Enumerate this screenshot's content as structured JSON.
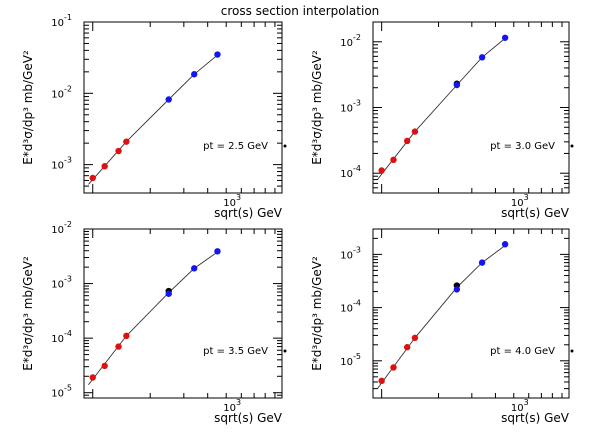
{
  "figure_title": "cross section interpolation",
  "colors": {
    "red": "#dd1111",
    "blue": "#1515ee",
    "black": "#000000",
    "axis": "#000000"
  },
  "chart_data": [
    {
      "type": "scatter",
      "title": "",
      "annotation": "pt = 2.5 GeV",
      "xlabel": "sqrt(s) GeV",
      "ylabel": "E*d³σ/dp³ mb/GeV²",
      "xscale": "log",
      "yscale": "log",
      "xlim": [
        180,
        1960
      ],
      "ylim": [
        0.0004,
        0.1
      ],
      "xtick": {
        "value": 1000,
        "mantissa": "10",
        "exponent": "3"
      },
      "yticks": [
        {
          "value": 0.001,
          "mantissa": "10",
          "exponent": "-3"
        },
        {
          "value": 0.01,
          "mantissa": "10",
          "exponent": "-2"
        },
        {
          "value": 0.1,
          "mantissa": "10",
          "exponent": "-1"
        }
      ],
      "red_points": {
        "x": [
          200,
          231,
          273,
          300
        ],
        "y": [
          0.00065,
          0.00095,
          0.00155,
          0.0021
        ]
      },
      "black_points": {
        "x": [],
        "y": []
      },
      "blue_points": {
        "x": [
          500,
          680,
          900
        ],
        "y": [
          0.0082,
          0.0185,
          0.035
        ]
      },
      "fit_line": {
        "x": [
          190,
          300,
          500,
          680,
          930
        ],
        "y": [
          0.00053,
          0.0021,
          0.0082,
          0.0185,
          0.037
        ]
      }
    },
    {
      "type": "scatter",
      "title": "",
      "annotation": "pt = 3.0 GeV",
      "xlabel": "sqrt(s) GeV",
      "ylabel": "E*d³σ/dp³ mb/GeV²",
      "xscale": "log",
      "yscale": "log",
      "xlim": [
        180,
        1960
      ],
      "ylim": [
        5e-05,
        0.02
      ],
      "xtick": {
        "value": 1000,
        "mantissa": "10",
        "exponent": "3"
      },
      "yticks": [
        {
          "value": 0.0001,
          "mantissa": "10",
          "exponent": "-4"
        },
        {
          "value": 0.001,
          "mantissa": "10",
          "exponent": "-3"
        },
        {
          "value": 0.01,
          "mantissa": "10",
          "exponent": "-2"
        }
      ],
      "red_points": {
        "x": [
          200,
          231,
          273,
          300
        ],
        "y": [
          0.00011,
          0.00016,
          0.00031,
          0.00043
        ]
      },
      "black_points": {
        "x": [
          500
        ],
        "y": [
          0.0023
        ]
      },
      "blue_points": {
        "x": [
          500,
          680,
          900
        ],
        "y": [
          0.0022,
          0.0058,
          0.0115
        ]
      },
      "fit_line": {
        "x": [
          190,
          300,
          500,
          680,
          930
        ],
        "y": [
          8e-05,
          0.00043,
          0.0022,
          0.0058,
          0.0122
        ]
      }
    },
    {
      "type": "scatter",
      "title": "",
      "annotation": "pt = 3.5 GeV",
      "xlabel": "sqrt(s) GeV",
      "ylabel": "E*d³σ/dp³ mb/GeV²",
      "xscale": "log",
      "yscale": "log",
      "xlim": [
        180,
        1960
      ],
      "ylim": [
        8e-06,
        0.01
      ],
      "xtick": {
        "value": 1000,
        "mantissa": "10",
        "exponent": "3"
      },
      "yticks": [
        {
          "value": 1e-05,
          "mantissa": "10",
          "exponent": "-5"
        },
        {
          "value": 0.0001,
          "mantissa": "10",
          "exponent": "-4"
        },
        {
          "value": 0.001,
          "mantissa": "10",
          "exponent": "-3"
        },
        {
          "value": 0.01,
          "mantissa": "10",
          "exponent": "-2"
        }
      ],
      "red_points": {
        "x": [
          200,
          231,
          273,
          300
        ],
        "y": [
          1.9e-05,
          3.1e-05,
          7e-05,
          0.00011
        ]
      },
      "black_points": {
        "x": [
          500
        ],
        "y": [
          0.00073
        ]
      },
      "blue_points": {
        "x": [
          500,
          680,
          900
        ],
        "y": [
          0.00065,
          0.0019,
          0.0039
        ]
      },
      "fit_line": {
        "x": [
          190,
          300,
          500,
          680,
          930
        ],
        "y": [
          1.4e-05,
          0.00011,
          0.00068,
          0.0019,
          0.0041
        ]
      }
    },
    {
      "type": "scatter",
      "title": "",
      "annotation": "pt = 4.0 GeV",
      "xlabel": "sqrt(s) GeV",
      "ylabel": "E*d³σ/dp³ mb/GeV²",
      "xscale": "log",
      "yscale": "log",
      "xlim": [
        180,
        1960
      ],
      "ylim": [
        2e-06,
        0.003
      ],
      "xtick": {
        "value": 1000,
        "mantissa": "10",
        "exponent": "3"
      },
      "yticks": [
        {
          "value": 1e-05,
          "mantissa": "10",
          "exponent": "-5"
        },
        {
          "value": 0.0001,
          "mantissa": "10",
          "exponent": "-4"
        },
        {
          "value": 0.001,
          "mantissa": "10",
          "exponent": "-3"
        }
      ],
      "red_points": {
        "x": [
          200,
          231,
          273,
          300
        ],
        "y": [
          4.2e-06,
          7.5e-06,
          1.8e-05,
          2.7e-05
        ]
      },
      "black_points": {
        "x": [
          500
        ],
        "y": [
          0.00026
        ]
      },
      "blue_points": {
        "x": [
          500,
          680,
          900
        ],
        "y": [
          0.00022,
          0.0007,
          0.00155
        ]
      },
      "fit_line": {
        "x": [
          190,
          300,
          500,
          680,
          930
        ],
        "y": [
          3e-06,
          2.7e-05,
          0.00024,
          0.0007,
          0.0016
        ]
      }
    }
  ]
}
